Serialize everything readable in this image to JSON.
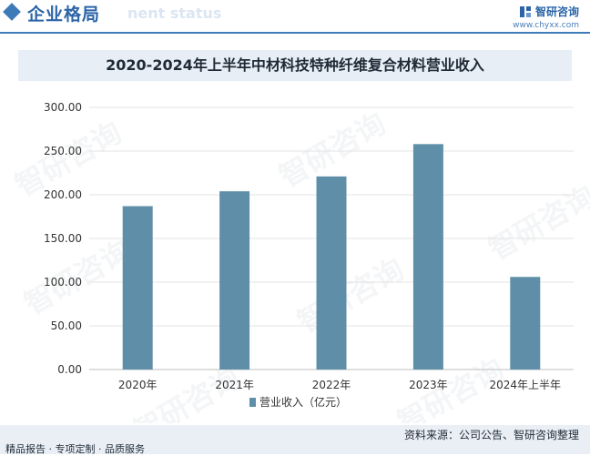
{
  "header": {
    "title": "企业格局",
    "subtitle_ghost": "nent status",
    "brand_name": "智研咨询",
    "brand_url": "www.chyxx.com"
  },
  "watermark_text": "智研咨询",
  "chart_data": {
    "type": "bar",
    "title": "2020-2024年上半年中材科技特种纤维复合材料营业收入",
    "categories": [
      "2020年",
      "2021年",
      "2022年",
      "2023年",
      "2024年上半年"
    ],
    "series": [
      {
        "name": "营业收入（亿元）",
        "values": [
          187,
          204,
          221,
          258,
          106
        ],
        "color": "#5f8fa8"
      }
    ],
    "ylim": [
      0,
      300
    ],
    "yticks": [
      "0.00",
      "50.00",
      "100.00",
      "150.00",
      "200.00",
      "250.00",
      "300.00"
    ],
    "ytick_values": [
      0,
      50,
      100,
      150,
      200,
      250,
      300
    ],
    "grid": true,
    "legend": "bottom"
  },
  "footer": {
    "source": "资料来源：公司公告、智研咨询整理",
    "tags": "精品报告 · 专项定制 · 品质服务"
  }
}
